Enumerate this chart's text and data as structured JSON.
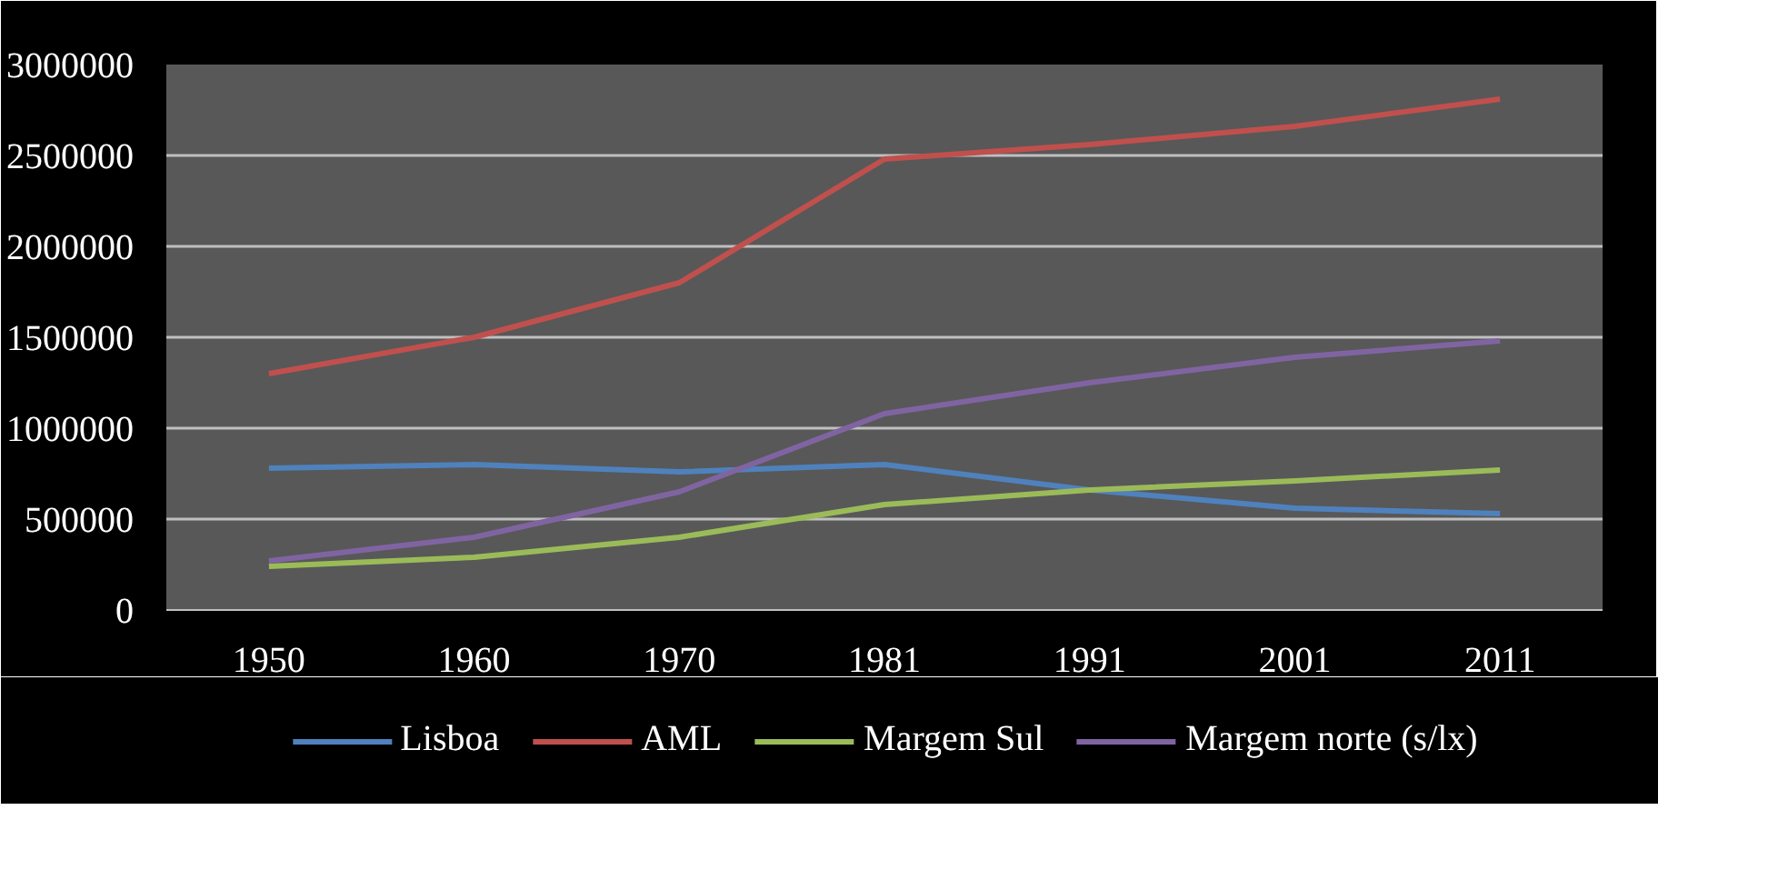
{
  "chart_data": {
    "type": "line",
    "categories": [
      "1950",
      "1960",
      "1970",
      "1981",
      "1991",
      "2001",
      "2011"
    ],
    "series": [
      {
        "name": "Lisboa",
        "color": "#4f81bd",
        "values": [
          780000,
          800000,
          760000,
          800000,
          660000,
          560000,
          530000
        ]
      },
      {
        "name": "AML",
        "color": "#c0504d",
        "values": [
          1300000,
          1500000,
          1800000,
          2480000,
          2560000,
          2660000,
          2810000
        ]
      },
      {
        "name": "Margem Sul",
        "color": "#9bbb59",
        "values": [
          240000,
          290000,
          400000,
          580000,
          660000,
          710000,
          770000
        ]
      },
      {
        "name": "Margem norte (s/lx)",
        "color": "#8064a2",
        "values": [
          270000,
          400000,
          650000,
          1080000,
          1250000,
          1390000,
          1480000
        ]
      }
    ],
    "ylim": [
      0,
      3000000
    ],
    "yticks": [
      0,
      500000,
      1000000,
      1500000,
      2000000,
      2500000,
      3000000
    ],
    "grid": "y",
    "legend": "bottom",
    "marker": "none",
    "line_style": "solid"
  }
}
